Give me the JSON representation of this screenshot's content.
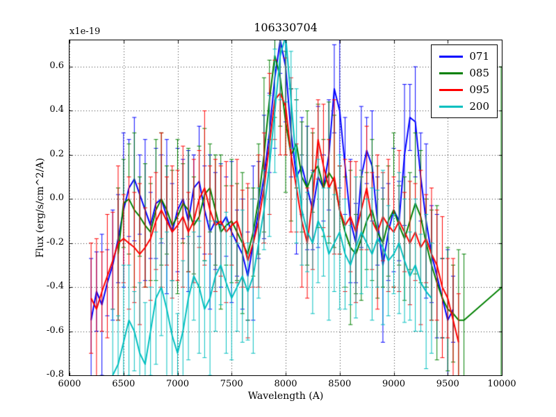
{
  "style": {
    "background": "#ffffff",
    "axes_color": "#000000",
    "grid_color": "#000000"
  },
  "chart_data": {
    "type": "line",
    "title": "106330704",
    "xlabel": "Wavelength (A)",
    "ylabel": "Flux (erg/s/cm^2/A)",
    "offset_text": "x1e-19",
    "xlim": [
      6000,
      10000
    ],
    "ylim": [
      -0.8,
      0.72
    ],
    "xticks": [
      6000,
      6500,
      7000,
      7500,
      8000,
      8500,
      9000,
      9500,
      10000
    ],
    "yticks": [
      -0.8,
      -0.6,
      -0.4,
      -0.2,
      0.0,
      0.2,
      0.4,
      0.6
    ],
    "grid": true,
    "grid_style": "dotted",
    "legend_position": "upper right",
    "series": [
      {
        "name": "071",
        "color": "#0000ff",
        "x_start": 6200,
        "x_step": 50,
        "y": [
          -0.55,
          -0.42,
          -0.48,
          -0.38,
          -0.3,
          -0.18,
          -0.05,
          0.05,
          0.09,
          0.02,
          -0.05,
          -0.12,
          -0.02,
          0.0,
          -0.08,
          -0.15,
          -0.05,
          0.0,
          -0.1,
          0.05,
          0.08,
          -0.05,
          -0.15,
          -0.1,
          -0.12,
          -0.08,
          -0.15,
          -0.2,
          -0.25,
          -0.35,
          -0.2,
          -0.05,
          0.1,
          0.3,
          0.55,
          0.72,
          0.6,
          0.3,
          0.1,
          0.15,
          0.05,
          -0.05,
          0.1,
          0.05,
          0.2,
          0.5,
          0.4,
          0.15,
          -0.1,
          -0.2,
          0.1,
          0.22,
          0.15,
          -0.1,
          -0.3,
          -0.15,
          -0.05,
          -0.1,
          0.2,
          0.37,
          0.35,
          0.1,
          -0.1,
          -0.25,
          -0.35,
          -0.45,
          -0.55,
          -0.5
        ],
        "yerr_cycle": [
          0.28,
          0.18,
          0.32,
          0.15,
          0.25,
          0.2,
          0.35,
          0.22
        ]
      },
      {
        "name": "085",
        "color": "#008000",
        "x_start": 6450,
        "x_step": 50,
        "y": [
          -0.25,
          -0.02,
          0.0,
          -0.05,
          -0.08,
          -0.12,
          -0.15,
          -0.05,
          0.0,
          -0.05,
          -0.12,
          -0.08,
          -0.02,
          -0.05,
          -0.12,
          -0.08,
          0.02,
          0.05,
          -0.05,
          -0.15,
          -0.12,
          -0.1,
          -0.15,
          -0.2,
          -0.25,
          -0.15,
          0.0,
          0.2,
          0.45,
          0.65,
          0.55,
          0.35,
          0.2,
          0.25,
          0.1,
          0.05,
          0.12,
          0.15,
          0.05,
          0.12,
          0.08,
          -0.05,
          -0.15,
          -0.22,
          -0.25,
          -0.18,
          -0.1,
          -0.05,
          -0.15,
          -0.2,
          -0.1,
          -0.05,
          -0.12,
          -0.18,
          -0.1,
          -0.02,
          -0.08,
          -0.2,
          -0.3,
          -0.38,
          -0.45,
          -0.5,
          -0.52,
          -0.55,
          -0.55
        ],
        "yerr_cycle": [
          0.3,
          0.2,
          0.25,
          0.35,
          0.18,
          0.28,
          0.22,
          0.32
        ],
        "extra_point": {
          "x": 10000,
          "y": -0.4,
          "yerr": 1.0
        }
      },
      {
        "name": "095",
        "color": "#ff0000",
        "x_start": 6200,
        "x_step": 50,
        "y": [
          -0.45,
          -0.5,
          -0.42,
          -0.35,
          -0.28,
          -0.2,
          -0.18,
          -0.2,
          -0.22,
          -0.25,
          -0.22,
          -0.18,
          -0.1,
          -0.05,
          -0.1,
          -0.15,
          -0.12,
          -0.08,
          -0.15,
          -0.1,
          0.0,
          0.05,
          -0.05,
          -0.12,
          -0.1,
          -0.15,
          -0.12,
          -0.1,
          -0.18,
          -0.28,
          -0.2,
          -0.1,
          0.05,
          0.25,
          0.45,
          0.48,
          0.42,
          0.2,
          0.05,
          -0.1,
          -0.2,
          0.0,
          0.27,
          0.15,
          0.05,
          0.1,
          -0.05,
          -0.12,
          -0.08,
          -0.15,
          -0.05,
          0.05,
          -0.1,
          -0.15,
          -0.08,
          -0.12,
          -0.15,
          -0.1,
          -0.15,
          -0.2,
          -0.15,
          -0.22,
          -0.18,
          -0.25,
          -0.3,
          -0.4,
          -0.45,
          -0.55,
          -0.65
        ],
        "yerr_cycle": [
          0.25,
          0.32,
          0.18,
          0.28,
          0.22,
          0.35,
          0.2,
          0.3
        ]
      },
      {
        "name": "200",
        "color": "#00bfbf",
        "x_start": 6400,
        "x_step": 50,
        "y": [
          -0.8,
          -0.75,
          -0.65,
          -0.55,
          -0.6,
          -0.7,
          -0.75,
          -0.6,
          -0.45,
          -0.4,
          -0.5,
          -0.62,
          -0.7,
          -0.6,
          -0.45,
          -0.35,
          -0.4,
          -0.5,
          -0.45,
          -0.35,
          -0.3,
          -0.38,
          -0.45,
          -0.4,
          -0.35,
          -0.42,
          -0.35,
          -0.2,
          -0.05,
          0.15,
          0.4,
          0.65,
          0.74,
          0.45,
          0.15,
          -0.05,
          -0.15,
          -0.2,
          -0.1,
          -0.15,
          -0.25,
          -0.2,
          -0.15,
          -0.25,
          -0.3,
          -0.22,
          -0.15,
          -0.2,
          -0.25,
          -0.18,
          -0.22,
          -0.28,
          -0.25,
          -0.2,
          -0.28,
          -0.35,
          -0.3,
          -0.38,
          -0.42,
          -0.45
        ],
        "yerr_cycle": [
          0.3,
          0.22,
          0.35,
          0.25,
          0.18,
          0.32,
          0.28,
          0.2
        ]
      }
    ]
  }
}
